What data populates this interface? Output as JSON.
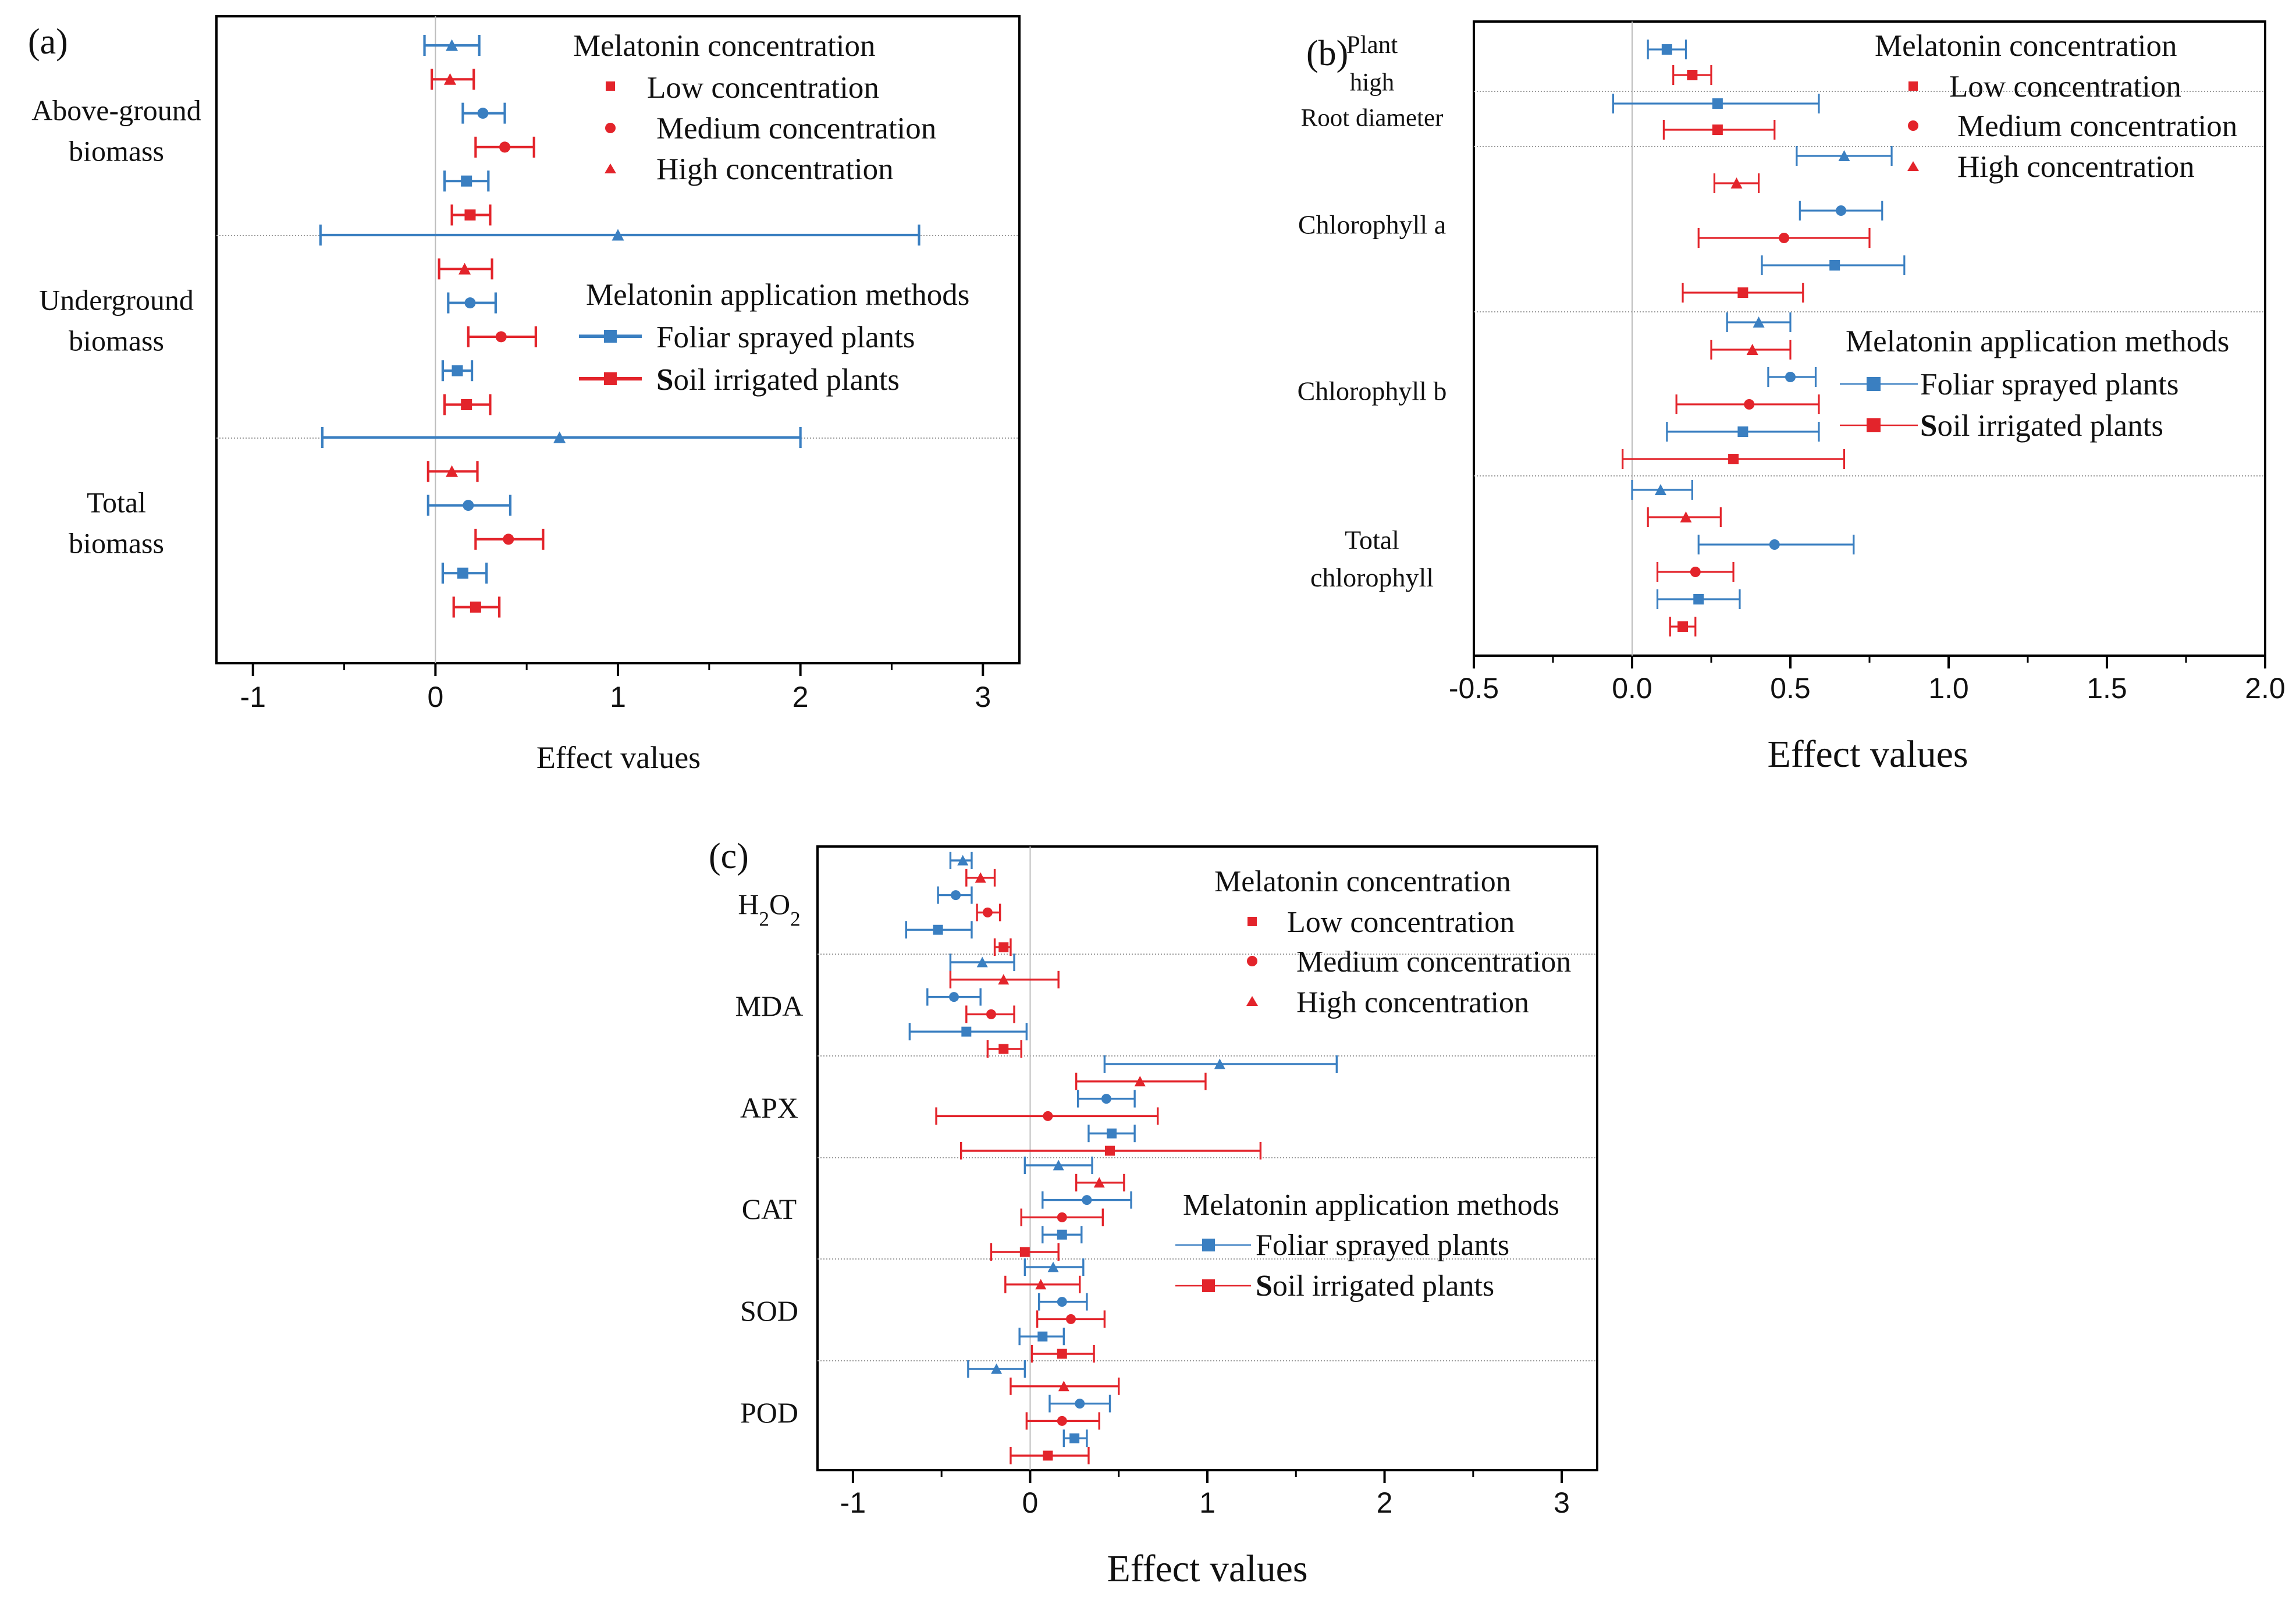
{
  "colors": {
    "foliar": "#3a7fc1",
    "soil": "#e3242b",
    "sep": "#9a9a9a",
    "zero": "#bdbdbd",
    "axis": "#000000"
  },
  "legend": {
    "concentration_title": "Melatonin concentration",
    "low": "Low concentration",
    "medium": "Medium concentration",
    "high": "High concentration",
    "methods_title": "Melatonin application methods",
    "foliar": "Foliar sprayed plants",
    "soil_bold": "S",
    "soil_rest": "oil irrigated plants"
  },
  "chart_data": [
    {
      "panel": "(a)",
      "type": "forest",
      "xlabel": "Effect values",
      "xlim": [
        -1.2,
        3.2
      ],
      "xticks": [
        -1,
        0,
        1,
        2,
        3
      ],
      "tick_labels": [
        "-1",
        "0",
        "1",
        "2",
        "3"
      ],
      "groups": [
        {
          "label": [
            "Above-ground",
            "biomass"
          ],
          "rows": [
            {
              "method": "foliar",
              "conc": "high",
              "value": 0.09,
              "low": -0.06,
              "high": 0.24
            },
            {
              "method": "soil",
              "conc": "high",
              "value": 0.08,
              "low": -0.02,
              "high": 0.21
            },
            {
              "method": "foliar",
              "conc": "medium",
              "value": 0.26,
              "low": 0.15,
              "high": 0.38
            },
            {
              "method": "soil",
              "conc": "medium",
              "value": 0.38,
              "low": 0.22,
              "high": 0.54
            },
            {
              "method": "foliar",
              "conc": "low",
              "value": 0.17,
              "low": 0.05,
              "high": 0.29
            },
            {
              "method": "soil",
              "conc": "low",
              "value": 0.19,
              "low": 0.09,
              "high": 0.3
            }
          ]
        },
        {
          "label": [
            "Underground",
            "biomass"
          ],
          "rows": [
            {
              "method": "foliar",
              "conc": "high",
              "value": 1.0,
              "low": -0.63,
              "high": 2.65
            },
            {
              "method": "soil",
              "conc": "high",
              "value": 0.16,
              "low": 0.02,
              "high": 0.31
            },
            {
              "method": "foliar",
              "conc": "medium",
              "value": 0.19,
              "low": 0.07,
              "high": 0.33
            },
            {
              "method": "soil",
              "conc": "medium",
              "value": 0.36,
              "low": 0.18,
              "high": 0.55
            },
            {
              "method": "foliar",
              "conc": "low",
              "value": 0.12,
              "low": 0.04,
              "high": 0.2
            },
            {
              "method": "soil",
              "conc": "low",
              "value": 0.17,
              "low": 0.05,
              "high": 0.3
            }
          ]
        },
        {
          "label": [
            "Total",
            "biomass"
          ],
          "rows": [
            {
              "method": "foliar",
              "conc": "high",
              "value": 0.68,
              "low": -0.62,
              "high": 2.0
            },
            {
              "method": "soil",
              "conc": "high",
              "value": 0.09,
              "low": -0.04,
              "high": 0.23
            },
            {
              "method": "foliar",
              "conc": "medium",
              "value": 0.18,
              "low": -0.04,
              "high": 0.41
            },
            {
              "method": "soil",
              "conc": "medium",
              "value": 0.4,
              "low": 0.22,
              "high": 0.59
            },
            {
              "method": "foliar",
              "conc": "low",
              "value": 0.15,
              "low": 0.04,
              "high": 0.28
            },
            {
              "method": "soil",
              "conc": "low",
              "value": 0.22,
              "low": 0.1,
              "high": 0.35
            }
          ]
        }
      ]
    },
    {
      "panel": "(b)",
      "type": "forest",
      "xlabel": "Effect values",
      "xlim": [
        -0.5,
        2.0
      ],
      "xticks": [
        -0.5,
        0.0,
        0.5,
        1.0,
        1.5,
        2.0
      ],
      "tick_labels": [
        "-0.5",
        "0.0",
        "0.5",
        "1.0",
        "1.5",
        "2.0"
      ],
      "groups": [
        {
          "label": [
            "Plant",
            "high"
          ],
          "rows": [
            {
              "method": "foliar",
              "conc": "low",
              "value": 0.11,
              "low": 0.05,
              "high": 0.17
            },
            {
              "method": "soil",
              "conc": "low",
              "value": 0.19,
              "low": 0.13,
              "high": 0.25
            }
          ]
        },
        {
          "label": [
            "Root  diameter"
          ],
          "rows": [
            {
              "method": "foliar",
              "conc": "low",
              "value": 0.27,
              "low": -0.06,
              "high": 0.59
            },
            {
              "method": "soil",
              "conc": "low",
              "value": 0.27,
              "low": 0.1,
              "high": 0.45
            }
          ]
        },
        {
          "label": [
            "Chlorophyll a"
          ],
          "rows": [
            {
              "method": "foliar",
              "conc": "high",
              "value": 0.67,
              "low": 0.52,
              "high": 0.82
            },
            {
              "method": "soil",
              "conc": "high",
              "value": 0.33,
              "low": 0.26,
              "high": 0.4
            },
            {
              "method": "foliar",
              "conc": "medium",
              "value": 0.66,
              "low": 0.53,
              "high": 0.79
            },
            {
              "method": "soil",
              "conc": "medium",
              "value": 0.48,
              "low": 0.21,
              "high": 0.75
            },
            {
              "method": "foliar",
              "conc": "low",
              "value": 0.64,
              "low": 0.41,
              "high": 0.86
            },
            {
              "method": "soil",
              "conc": "low",
              "value": 0.35,
              "low": 0.16,
              "high": 0.54
            }
          ]
        },
        {
          "label": [
            "Chlorophyll b"
          ],
          "rows": [
            {
              "method": "foliar",
              "conc": "high",
              "value": 0.4,
              "low": 0.3,
              "high": 0.5
            },
            {
              "method": "soil",
              "conc": "high",
              "value": 0.38,
              "low": 0.25,
              "high": 0.5
            },
            {
              "method": "foliar",
              "conc": "medium",
              "value": 0.5,
              "low": 0.43,
              "high": 0.58
            },
            {
              "method": "soil",
              "conc": "medium",
              "value": 0.37,
              "low": 0.14,
              "high": 0.59
            },
            {
              "method": "foliar",
              "conc": "low",
              "value": 0.35,
              "low": 0.11,
              "high": 0.59
            },
            {
              "method": "soil",
              "conc": "low",
              "value": 0.32,
              "low": -0.03,
              "high": 0.67
            }
          ]
        },
        {
          "label": [
            "Total",
            "chlorophyll"
          ],
          "rows": [
            {
              "method": "foliar",
              "conc": "high",
              "value": 0.09,
              "low": 0.0,
              "high": 0.19
            },
            {
              "method": "soil",
              "conc": "high",
              "value": 0.17,
              "low": 0.05,
              "high": 0.28
            },
            {
              "method": "foliar",
              "conc": "medium",
              "value": 0.45,
              "low": 0.21,
              "high": 0.7
            },
            {
              "method": "soil",
              "conc": "medium",
              "value": 0.2,
              "low": 0.08,
              "high": 0.32
            },
            {
              "method": "foliar",
              "conc": "low",
              "value": 0.21,
              "low": 0.08,
              "high": 0.34
            },
            {
              "method": "soil",
              "conc": "low",
              "value": 0.16,
              "low": 0.12,
              "high": 0.2
            }
          ]
        }
      ]
    },
    {
      "panel": "(c)",
      "type": "forest",
      "xlabel": "Effect values",
      "xlim": [
        -1.2,
        3.2
      ],
      "xticks": [
        -1,
        0,
        1,
        2,
        3
      ],
      "tick_labels": [
        "-1",
        "0",
        "1",
        "2",
        "3"
      ],
      "groups": [
        {
          "label": [
            "H2O2"
          ],
          "rows": [
            {
              "method": "foliar",
              "conc": "high",
              "value": -0.38,
              "low": -0.45,
              "high": -0.33
            },
            {
              "method": "soil",
              "conc": "high",
              "value": -0.28,
              "low": -0.36,
              "high": -0.2
            },
            {
              "method": "foliar",
              "conc": "medium",
              "value": -0.42,
              "low": -0.52,
              "high": -0.33
            },
            {
              "method": "soil",
              "conc": "medium",
              "value": -0.24,
              "low": -0.3,
              "high": -0.17
            },
            {
              "method": "foliar",
              "conc": "low",
              "value": -0.52,
              "low": -0.7,
              "high": -0.33
            },
            {
              "method": "soil",
              "conc": "low",
              "value": -0.15,
              "low": -0.2,
              "high": -0.11
            }
          ]
        },
        {
          "label": [
            "MDA"
          ],
          "rows": [
            {
              "method": "foliar",
              "conc": "high",
              "value": -0.27,
              "low": -0.45,
              "high": -0.09
            },
            {
              "method": "soil",
              "conc": "high",
              "value": -0.15,
              "low": -0.45,
              "high": 0.16
            },
            {
              "method": "foliar",
              "conc": "medium",
              "value": -0.43,
              "low": -0.58,
              "high": -0.28
            },
            {
              "method": "soil",
              "conc": "medium",
              "value": -0.22,
              "low": -0.36,
              "high": -0.09
            },
            {
              "method": "foliar",
              "conc": "low",
              "value": -0.36,
              "low": -0.68,
              "high": -0.02
            },
            {
              "method": "soil",
              "conc": "low",
              "value": -0.15,
              "low": -0.24,
              "high": -0.05
            }
          ]
        },
        {
          "label": [
            "APX"
          ],
          "rows": [
            {
              "method": "foliar",
              "conc": "high",
              "value": 1.07,
              "low": 0.42,
              "high": 1.73
            },
            {
              "method": "soil",
              "conc": "high",
              "value": 0.62,
              "low": 0.26,
              "high": 0.99
            },
            {
              "method": "foliar",
              "conc": "medium",
              "value": 0.43,
              "low": 0.27,
              "high": 0.59
            },
            {
              "method": "soil",
              "conc": "medium",
              "value": 0.1,
              "low": -0.53,
              "high": 0.72
            },
            {
              "method": "foliar",
              "conc": "low",
              "value": 0.46,
              "low": 0.33,
              "high": 0.59
            },
            {
              "method": "soil",
              "conc": "low",
              "value": 0.45,
              "low": -0.39,
              "high": 1.3
            }
          ]
        },
        {
          "label": [
            "CAT"
          ],
          "rows": [
            {
              "method": "foliar",
              "conc": "high",
              "value": 0.16,
              "low": -0.03,
              "high": 0.35
            },
            {
              "method": "soil",
              "conc": "high",
              "value": 0.39,
              "low": 0.26,
              "high": 0.53
            },
            {
              "method": "foliar",
              "conc": "medium",
              "value": 0.32,
              "low": 0.07,
              "high": 0.57
            },
            {
              "method": "soil",
              "conc": "medium",
              "value": 0.18,
              "low": -0.05,
              "high": 0.41
            },
            {
              "method": "foliar",
              "conc": "low",
              "value": 0.18,
              "low": 0.07,
              "high": 0.29
            },
            {
              "method": "soil",
              "conc": "low",
              "value": -0.03,
              "low": -0.22,
              "high": 0.16
            }
          ]
        },
        {
          "label": [
            "SOD"
          ],
          "rows": [
            {
              "method": "foliar",
              "conc": "high",
              "value": 0.13,
              "low": -0.03,
              "high": 0.3
            },
            {
              "method": "soil",
              "conc": "high",
              "value": 0.06,
              "low": -0.14,
              "high": 0.28
            },
            {
              "method": "foliar",
              "conc": "medium",
              "value": 0.18,
              "low": 0.05,
              "high": 0.32
            },
            {
              "method": "soil",
              "conc": "medium",
              "value": 0.23,
              "low": 0.04,
              "high": 0.42
            },
            {
              "method": "foliar",
              "conc": "low",
              "value": 0.07,
              "low": -0.06,
              "high": 0.19
            },
            {
              "method": "soil",
              "conc": "low",
              "value": 0.18,
              "low": 0.01,
              "high": 0.36
            }
          ]
        },
        {
          "label": [
            "POD"
          ],
          "rows": [
            {
              "method": "foliar",
              "conc": "high",
              "value": -0.19,
              "low": -0.35,
              "high": -0.03
            },
            {
              "method": "soil",
              "conc": "high",
              "value": 0.19,
              "low": -0.11,
              "high": 0.5
            },
            {
              "method": "foliar",
              "conc": "medium",
              "value": 0.28,
              "low": 0.11,
              "high": 0.45
            },
            {
              "method": "soil",
              "conc": "medium",
              "value": 0.18,
              "low": -0.02,
              "high": 0.39
            },
            {
              "method": "foliar",
              "conc": "low",
              "value": 0.25,
              "low": 0.19,
              "high": 0.32
            },
            {
              "method": "soil",
              "conc": "low",
              "value": 0.1,
              "low": -0.11,
              "high": 0.33
            }
          ]
        }
      ]
    }
  ]
}
